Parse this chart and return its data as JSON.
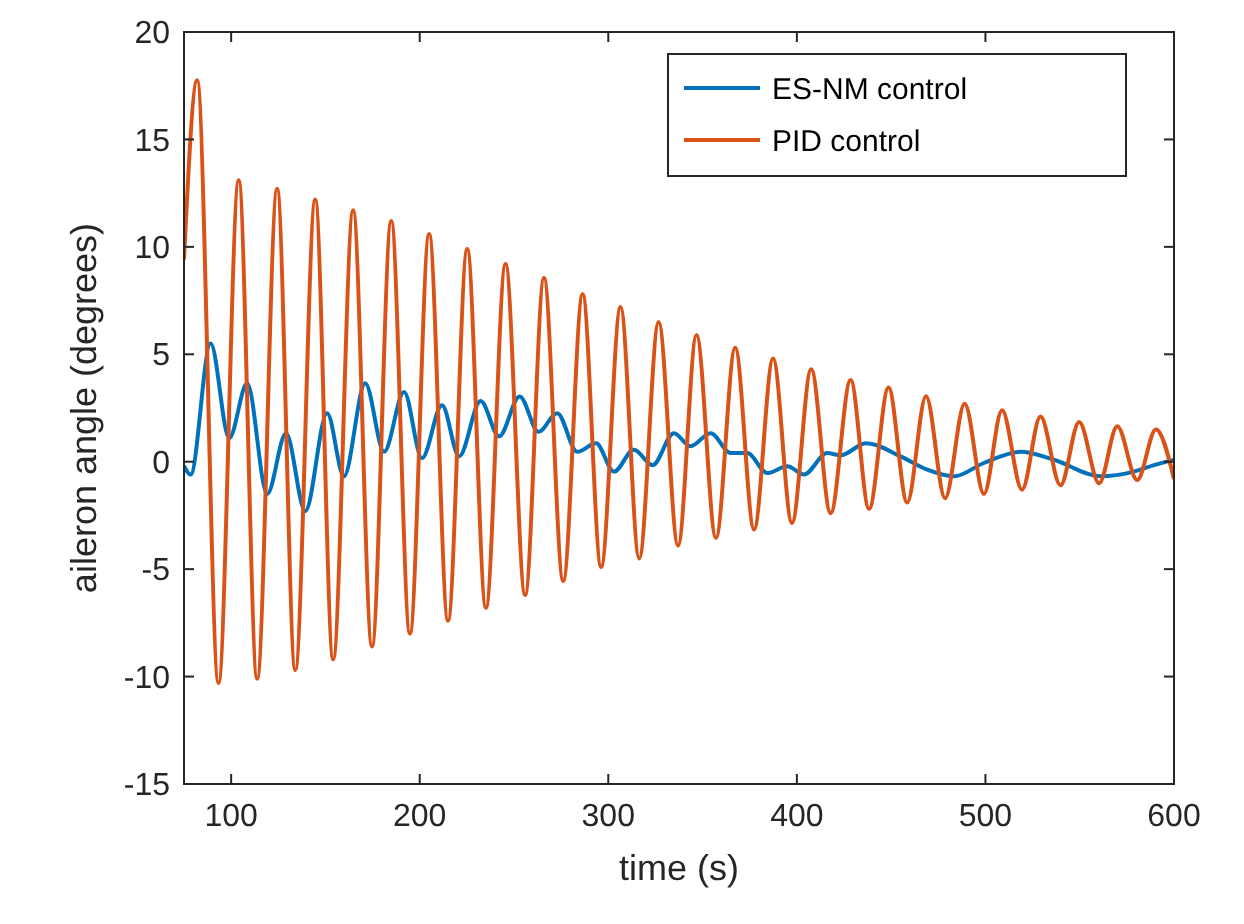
{
  "chart_data": {
    "type": "line",
    "xlabel": "time (s)",
    "ylabel": "aileron angle (degrees)",
    "xlim": [
      75,
      600
    ],
    "ylim": [
      -15,
      20
    ],
    "xticks": [
      100,
      200,
      300,
      400,
      500,
      600
    ],
    "yticks": [
      -15,
      -10,
      -5,
      0,
      5,
      10,
      15,
      20
    ],
    "grid": false,
    "legend": "top right",
    "marker": "none",
    "line_style": "solid",
    "series": [
      {
        "name": "ES-NM control",
        "color": "#0072bd",
        "x": [
          75,
          78.5,
          89.1,
          99,
          108.5,
          119.1,
          129.1,
          139.3,
          150.9,
          159.8,
          171.1,
          181.1,
          191.7,
          201.2,
          211.8,
          220.9,
          232.3,
          242.1,
          253,
          263,
          272.9,
          283.5,
          293.5,
          303,
          313.6,
          323.5,
          334.8,
          343.6,
          354.3,
          364.9,
          373.7,
          384.3,
          394.9,
          403.8,
          416.1,
          423.2,
          436.7,
          455,
          469.1,
          483.3,
          499.2,
          518.6,
          536.3,
          561.1,
          578.8,
          589.4,
          600
        ],
        "values": [
          -0.2,
          -0.6,
          5.5,
          1.1,
          3.65,
          -1.5,
          1.33,
          -2.3,
          2.26,
          -0.68,
          3.65,
          0.46,
          3.25,
          0.16,
          2.63,
          0.25,
          2.82,
          1.18,
          3.04,
          1.39,
          2.26,
          0.46,
          0.86,
          -0.46,
          0.56,
          -0.16,
          1.33,
          0.72,
          1.33,
          0.4,
          0.4,
          -0.53,
          -0.21,
          -0.59,
          0.4,
          0.3,
          0.86,
          0.25,
          -0.37,
          -0.68,
          -0.06,
          0.46,
          0.09,
          -0.68,
          -0.46,
          -0.16,
          0.09
        ]
      },
      {
        "name": "PID control",
        "color": "#d95319",
        "x": [
          75,
          82,
          93.3,
          104,
          113.8,
          124.4,
          134,
          144.6,
          154.1,
          164.7,
          174.7,
          184.9,
          194.8,
          205,
          215,
          225.2,
          235.1,
          245.5,
          255.9,
          265.9,
          276.1,
          286.4,
          296.2,
          306.5,
          316.4,
          326.7,
          337,
          346.8,
          357.1,
          367.3,
          377.3,
          387.4,
          397.4,
          407.6,
          417.9,
          428.5,
          438.3,
          448.6,
          458.5,
          468.5,
          478.6,
          489,
          499.2,
          508.8,
          519.4,
          529.2,
          539.8,
          549.7,
          560.3,
          569.9,
          580.5,
          590.4,
          600
        ],
        "values": [
          9.4,
          17.75,
          -10.3,
          13.1,
          -10.1,
          12.7,
          -9.7,
          12.2,
          -9.2,
          11.7,
          -8.6,
          11.2,
          -8,
          10.6,
          -7.4,
          9.9,
          -6.8,
          9.2,
          -6.2,
          8.55,
          -5.55,
          7.8,
          -4.9,
          7.2,
          -4.5,
          6.5,
          -3.9,
          5.9,
          -3.55,
          5.3,
          -3.15,
          4.8,
          -2.85,
          4.3,
          -2.4,
          3.8,
          -2.2,
          3.45,
          -1.9,
          3.05,
          -1.7,
          2.7,
          -1.5,
          2.4,
          -1.3,
          2.1,
          -1.1,
          1.85,
          -1,
          1.65,
          -0.85,
          1.5,
          -0.8
        ]
      }
    ]
  }
}
